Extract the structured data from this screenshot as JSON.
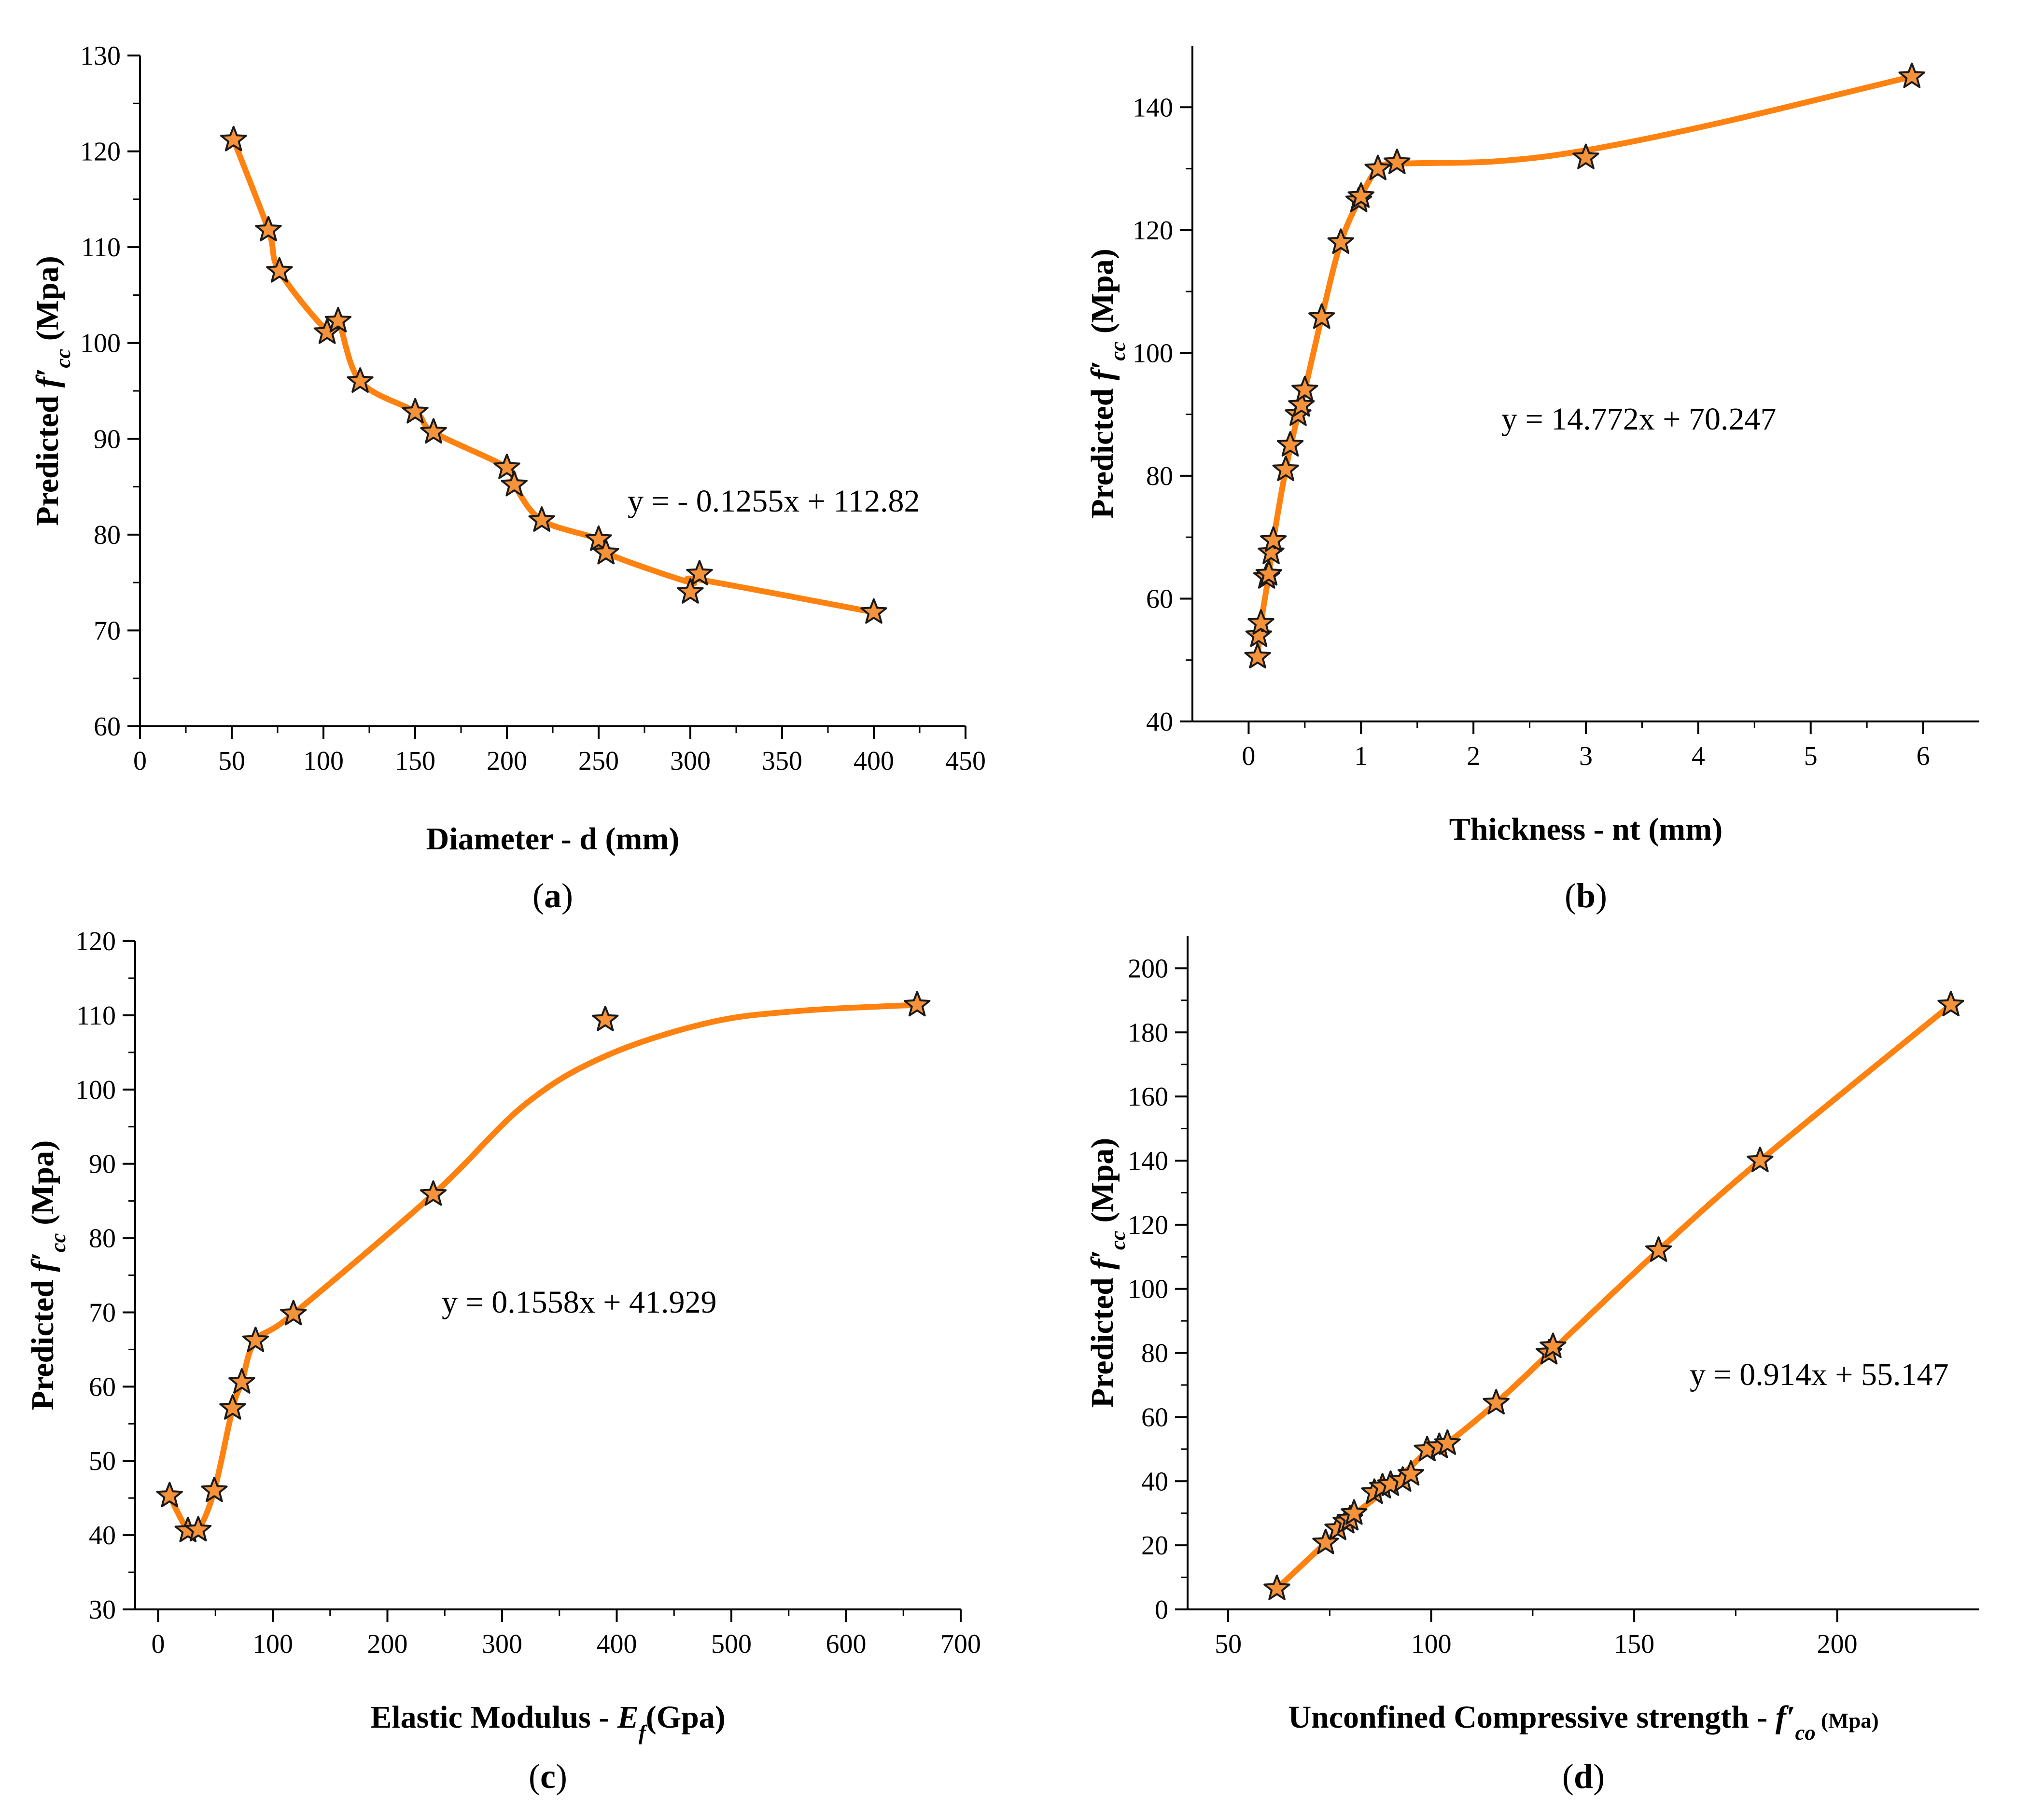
{
  "chart_data": [
    {
      "id": "a",
      "type": "line",
      "panel_label": "a",
      "xlabel": "Diameter - d (mm)",
      "ylabel_parts": [
        "Predicted ",
        "f′",
        "cc",
        " (Mpa)"
      ],
      "equation": "y = - 0.1255x + 112.82",
      "xlim": [
        0,
        450
      ],
      "ylim": [
        60,
        130
      ],
      "xticks": [
        0,
        50,
        100,
        150,
        200,
        250,
        300,
        350,
        400,
        450
      ],
      "yticks": [
        60,
        70,
        80,
        90,
        100,
        110,
        120,
        130
      ],
      "series": [
        {
          "name": "Predicted f'cc",
          "x": [
            51,
            70,
            76,
            102,
            108,
            120,
            150,
            160,
            200,
            204,
            219,
            250,
            254,
            300,
            305,
            400
          ],
          "y": [
            121.2,
            111.8,
            107.5,
            101.1,
            102.3,
            96.0,
            92.8,
            90.7,
            87.0,
            85.2,
            81.5,
            79.5,
            78.1,
            74.0,
            75.9,
            71.9
          ],
          "curve_x": [
            51,
            70,
            76,
            102,
            108,
            120,
            150,
            160,
            200,
            204,
            219,
            250,
            254,
            300,
            305,
            400
          ],
          "curve_y": [
            121.2,
            111.8,
            107.5,
            101.3,
            102.3,
            96.0,
            92.8,
            90.7,
            87.0,
            85.2,
            81.5,
            79.5,
            78.1,
            75.0,
            75.3,
            71.9
          ]
        }
      ]
    },
    {
      "id": "b",
      "type": "line",
      "panel_label": "b",
      "xlabel": "Thickness - nt (mm)",
      "ylabel_parts": [
        "Predicted ",
        "f′",
        "cc",
        " (Mpa)"
      ],
      "equation": "y = 14.772x + 70.247",
      "xlim": [
        -0.5,
        6.5
      ],
      "ylim": [
        40,
        150
      ],
      "xticks": [
        0,
        1,
        2,
        3,
        4,
        5,
        6
      ],
      "yticks": [
        40,
        60,
        80,
        100,
        120,
        140
      ],
      "series": [
        {
          "name": "Predicted f'cc",
          "x": [
            0.08,
            0.09,
            0.11,
            0.16,
            0.18,
            0.2,
            0.22,
            0.33,
            0.37,
            0.44,
            0.47,
            0.5,
            0.65,
            0.82,
            0.98,
            1.0,
            1.15,
            1.32,
            3.0,
            5.9
          ],
          "y": [
            50.5,
            54.0,
            56.0,
            63.5,
            64.0,
            67.5,
            69.5,
            81.0,
            85.0,
            90.0,
            91.5,
            94.0,
            105.8,
            118.0,
            124.8,
            125.5,
            130.0,
            131.0,
            131.8,
            145.0
          ],
          "curve_x": [
            0.08,
            0.11,
            0.18,
            0.22,
            0.33,
            0.44,
            0.5,
            0.65,
            0.82,
            1.0,
            1.15,
            1.32,
            2.2,
            3.0,
            4.2,
            5.9
          ],
          "curve_y": [
            50.5,
            56.0,
            64.0,
            69.5,
            81.0,
            90.0,
            94.0,
            105.8,
            118.0,
            125.5,
            130.0,
            130.8,
            131.2,
            133.0,
            137.5,
            145.0
          ]
        }
      ]
    },
    {
      "id": "c",
      "type": "line",
      "panel_label": "c",
      "xlabel_parts": [
        "Elastic Modulus - ",
        "E",
        "f",
        "(Gpa)"
      ],
      "ylabel_parts": [
        "Predicted ",
        "f′",
        "cc",
        " (Mpa)"
      ],
      "equation": "y = 0.1558x + 41.929",
      "xlim": [
        -20,
        700
      ],
      "ylim": [
        30,
        120
      ],
      "xticks": [
        0,
        100,
        200,
        300,
        400,
        500,
        600,
        700
      ],
      "yticks": [
        30,
        40,
        50,
        60,
        70,
        80,
        90,
        100,
        110,
        120
      ],
      "series": [
        {
          "name": "Predicted f'cc",
          "x": [
            10,
            26,
            35,
            49,
            65,
            73,
            85,
            118,
            240,
            390,
            662
          ],
          "y": [
            45.3,
            40.6,
            40.7,
            46.0,
            57.1,
            60.6,
            66.2,
            69.8,
            85.9,
            109.4,
            111.4
          ],
          "curve_x": [
            10,
            26,
            35,
            49,
            65,
            73,
            85,
            118,
            240,
            320,
            390,
            480,
            560,
            662
          ],
          "curve_y": [
            45.3,
            40.6,
            40.7,
            46.0,
            57.1,
            60.6,
            66.2,
            69.8,
            85.9,
            98.0,
            104.5,
            109.0,
            110.6,
            111.4
          ]
        }
      ]
    },
    {
      "id": "d",
      "type": "line",
      "panel_label": "d",
      "xlabel_parts": [
        "Unconfined Compressive strength - ",
        "f′",
        "co",
        " (Mpa)"
      ],
      "ylabel_parts": [
        "Predicted ",
        "f′",
        "cc",
        " (Mpa)"
      ],
      "equation": "y = 0.914x + 55.147",
      "xlim": [
        40,
        235
      ],
      "ylim": [
        0,
        210
      ],
      "xticks": [
        50,
        100,
        150,
        200
      ],
      "yticks": [
        0,
        20,
        40,
        60,
        80,
        100,
        120,
        140,
        160,
        180,
        200
      ],
      "series": [
        {
          "name": "Predicted f'cc",
          "x": [
            62,
            74,
            77,
            79,
            80,
            81,
            86,
            88,
            90,
            93,
            95,
            99,
            102,
            104,
            116,
            129,
            130,
            156,
            181,
            228
          ],
          "y": [
            6.5,
            20.8,
            25.2,
            27.3,
            28.2,
            30.0,
            36.5,
            38.2,
            39.0,
            40.3,
            42.2,
            49.8,
            50.8,
            51.8,
            64.4,
            80.0,
            82.0,
            112.0,
            140.0,
            188.6
          ],
          "curve_x": [
            62,
            74,
            80,
            90,
            99,
            104,
            116,
            130,
            156,
            181,
            228
          ],
          "curve_y": [
            6.5,
            20.8,
            28.5,
            38.6,
            49.2,
            52.0,
            64.4,
            81.0,
            112.0,
            140.0,
            188.6
          ]
        }
      ]
    }
  ],
  "style": {
    "line_color": "#ff8210",
    "marker_fill": "#f5923a",
    "marker_stroke": "#1a1a1a",
    "axis_color": "#000000"
  }
}
